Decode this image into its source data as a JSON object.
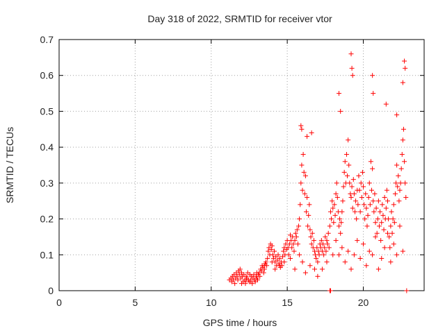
{
  "chart_data": {
    "type": "scatter",
    "title": "Day 318 of 2022, SRMTID for receiver vtor",
    "xlabel": "GPS time / hours",
    "ylabel": "SRMTID / TECUs",
    "xlim": [
      0,
      24
    ],
    "ylim": [
      0,
      0.7
    ],
    "x_ticks": [
      0,
      5,
      10,
      15,
      20
    ],
    "y_ticks": [
      0,
      0.1,
      0.2,
      0.3,
      0.4,
      0.5,
      0.6,
      0.7
    ],
    "x_tick_labels": [
      "0",
      "5",
      "10",
      "15",
      "20"
    ],
    "y_tick_labels": [
      "0",
      "0.1",
      "0.2",
      "0.3",
      "0.4",
      "0.5",
      "0.6",
      "0.7"
    ],
    "grid": true,
    "marker": "+",
    "marker_color": "#ff0000",
    "series": [
      {
        "name": "SRMTID",
        "x": [
          11.2,
          11.3,
          11.35,
          11.4,
          11.45,
          11.5,
          11.55,
          11.6,
          11.65,
          11.7,
          11.75,
          11.8,
          11.85,
          11.9,
          11.95,
          12.0,
          12.05,
          12.1,
          12.15,
          12.2,
          12.25,
          12.3,
          12.35,
          12.4,
          12.45,
          12.5,
          12.55,
          12.6,
          12.65,
          12.7,
          12.75,
          12.8,
          12.85,
          12.9,
          12.95,
          13.0,
          13.05,
          13.1,
          13.15,
          13.2,
          13.25,
          13.3,
          13.35,
          13.4,
          13.45,
          13.5,
          13.55,
          13.6,
          13.65,
          13.7,
          13.75,
          13.8,
          13.85,
          13.9,
          13.95,
          14.0,
          14.05,
          14.1,
          14.15,
          14.2,
          14.25,
          14.3,
          14.35,
          14.4,
          14.45,
          14.5,
          14.55,
          14.6,
          14.65,
          14.7,
          14.75,
          14.8,
          14.85,
          14.9,
          14.95,
          15.0,
          15.05,
          15.1,
          15.15,
          15.2,
          15.25,
          15.3,
          15.35,
          15.4,
          15.45,
          15.5,
          15.55,
          15.6,
          15.65,
          15.7,
          15.75,
          15.8,
          15.85,
          15.9,
          15.95,
          16.0,
          16.05,
          16.1,
          16.15,
          16.2,
          16.25,
          16.3,
          16.35,
          16.4,
          16.45,
          16.5,
          16.55,
          16.6,
          16.65,
          16.7,
          16.75,
          16.8,
          16.85,
          16.9,
          16.95,
          17.0,
          17.05,
          17.1,
          17.15,
          17.2,
          17.25,
          17.3,
          17.35,
          17.4,
          17.45,
          17.5,
          17.55,
          17.6,
          17.65,
          17.7,
          17.75,
          17.8,
          17.85,
          17.9,
          17.95,
          18.0,
          18.05,
          18.1,
          18.15,
          18.2,
          18.25,
          18.3,
          18.35,
          18.4,
          18.45,
          18.5,
          18.55,
          18.6,
          18.65,
          18.7,
          18.75,
          18.8,
          18.85,
          18.9,
          18.95,
          19.0,
          19.05,
          19.1,
          19.15,
          19.2,
          19.25,
          19.3,
          19.35,
          19.4,
          19.45,
          19.5,
          19.55,
          19.6,
          19.65,
          19.7,
          19.75,
          19.8,
          19.85,
          19.9,
          19.95,
          20.0,
          20.05,
          20.1,
          20.15,
          20.2,
          20.25,
          20.3,
          20.35,
          20.4,
          20.45,
          20.5,
          20.55,
          20.6,
          20.65,
          20.7,
          20.75,
          20.8,
          20.85,
          20.9,
          20.95,
          21.0,
          21.05,
          21.1,
          21.15,
          21.2,
          21.25,
          21.3,
          21.35,
          21.4,
          21.45,
          21.5,
          21.55,
          21.6,
          21.65,
          21.7,
          21.75,
          21.8,
          21.85,
          21.9,
          21.95,
          22.0,
          22.05,
          22.1,
          22.15,
          22.2,
          22.25,
          22.3,
          22.35,
          22.4,
          22.45,
          22.5,
          22.55,
          22.6,
          22.65,
          22.7,
          22.75,
          22.8,
          12.0,
          12.3,
          12.6,
          13.0,
          13.5,
          14.0,
          14.2,
          14.5,
          14.8,
          15.2,
          15.5,
          15.8,
          16.0,
          16.2,
          16.5,
          16.8,
          17.0,
          17.3,
          17.6,
          18.0,
          18.2,
          18.4,
          18.6,
          18.8,
          19.0,
          19.2,
          19.4,
          19.6,
          19.8,
          20.0,
          20.2,
          20.4,
          20.6,
          20.8,
          21.0,
          21.2,
          21.4,
          21.6,
          21.8,
          22.0,
          22.2,
          22.4,
          22.6,
          15.9,
          15.95,
          16.3,
          16.6,
          18.4,
          18.5,
          19.2,
          19.25,
          19.3,
          20.6,
          20.65,
          21.5,
          22.7,
          22.75,
          22.6,
          22.2,
          17.8,
          17.85,
          22.85
        ],
        "y": [
          0.03,
          0.035,
          0.025,
          0.04,
          0.03,
          0.045,
          0.02,
          0.035,
          0.05,
          0.04,
          0.03,
          0.055,
          0.045,
          0.06,
          0.035,
          0.05,
          0.04,
          0.025,
          0.045,
          0.03,
          0.02,
          0.04,
          0.035,
          0.05,
          0.03,
          0.025,
          0.045,
          0.03,
          0.04,
          0.02,
          0.035,
          0.045,
          0.03,
          0.025,
          0.04,
          0.035,
          0.03,
          0.045,
          0.05,
          0.04,
          0.06,
          0.055,
          0.07,
          0.065,
          0.05,
          0.06,
          0.075,
          0.08,
          0.07,
          0.09,
          0.11,
          0.12,
          0.1,
          0.13,
          0.115,
          0.125,
          0.1,
          0.09,
          0.11,
          0.08,
          0.095,
          0.07,
          0.085,
          0.1,
          0.075,
          0.09,
          0.065,
          0.08,
          0.07,
          0.095,
          0.11,
          0.12,
          0.1,
          0.13,
          0.115,
          0.14,
          0.12,
          0.1,
          0.13,
          0.155,
          0.14,
          0.12,
          0.15,
          0.13,
          0.11,
          0.14,
          0.16,
          0.15,
          0.17,
          0.13,
          0.18,
          0.2,
          0.24,
          0.3,
          0.35,
          0.28,
          0.38,
          0.33,
          0.27,
          0.32,
          0.22,
          0.26,
          0.18,
          0.21,
          0.24,
          0.17,
          0.15,
          0.13,
          0.16,
          0.12,
          0.14,
          0.11,
          0.1,
          0.09,
          0.12,
          0.08,
          0.11,
          0.1,
          0.13,
          0.12,
          0.14,
          0.11,
          0.13,
          0.1,
          0.12,
          0.15,
          0.11,
          0.14,
          0.13,
          0.16,
          0.12,
          0.18,
          0.22,
          0.2,
          0.25,
          0.23,
          0.19,
          0.24,
          0.21,
          0.27,
          0.3,
          0.26,
          0.22,
          0.18,
          0.2,
          0.16,
          0.19,
          0.22,
          0.25,
          0.29,
          0.33,
          0.36,
          0.3,
          0.38,
          0.32,
          0.42,
          0.35,
          0.3,
          0.27,
          0.26,
          0.29,
          0.23,
          0.31,
          0.27,
          0.22,
          0.25,
          0.2,
          0.28,
          0.24,
          0.32,
          0.28,
          0.22,
          0.3,
          0.26,
          0.33,
          0.29,
          0.24,
          0.2,
          0.27,
          0.23,
          0.18,
          0.21,
          0.26,
          0.3,
          0.24,
          0.36,
          0.28,
          0.34,
          0.25,
          0.22,
          0.27,
          0.19,
          0.23,
          0.16,
          0.2,
          0.25,
          0.18,
          0.22,
          0.14,
          0.19,
          0.24,
          0.21,
          0.17,
          0.26,
          0.2,
          0.23,
          0.28,
          0.25,
          0.2,
          0.15,
          0.12,
          0.18,
          0.22,
          0.16,
          0.2,
          0.24,
          0.19,
          0.27,
          0.3,
          0.35,
          0.29,
          0.32,
          0.25,
          0.28,
          0.3,
          0.34,
          0.38,
          0.42,
          0.45,
          0.36,
          0.3,
          0.26,
          0.02,
          0.03,
          0.025,
          0.05,
          0.07,
          0.08,
          0.06,
          0.07,
          0.08,
          0.09,
          0.06,
          0.1,
          0.08,
          0.05,
          0.07,
          0.06,
          0.04,
          0.06,
          0.08,
          0.1,
          0.14,
          0.1,
          0.12,
          0.08,
          0.11,
          0.06,
          0.1,
          0.14,
          0.09,
          0.13,
          0.07,
          0.11,
          0.1,
          0.15,
          0.06,
          0.09,
          0.12,
          0.16,
          0.08,
          0.13,
          0.1,
          0.18,
          0.11,
          0.46,
          0.45,
          0.43,
          0.44,
          0.55,
          0.5,
          0.66,
          0.62,
          0.6,
          0.6,
          0.55,
          0.52,
          0.64,
          0.62,
          0.58,
          0.49,
          0.0,
          0.0,
          0.0
        ]
      }
    ]
  }
}
